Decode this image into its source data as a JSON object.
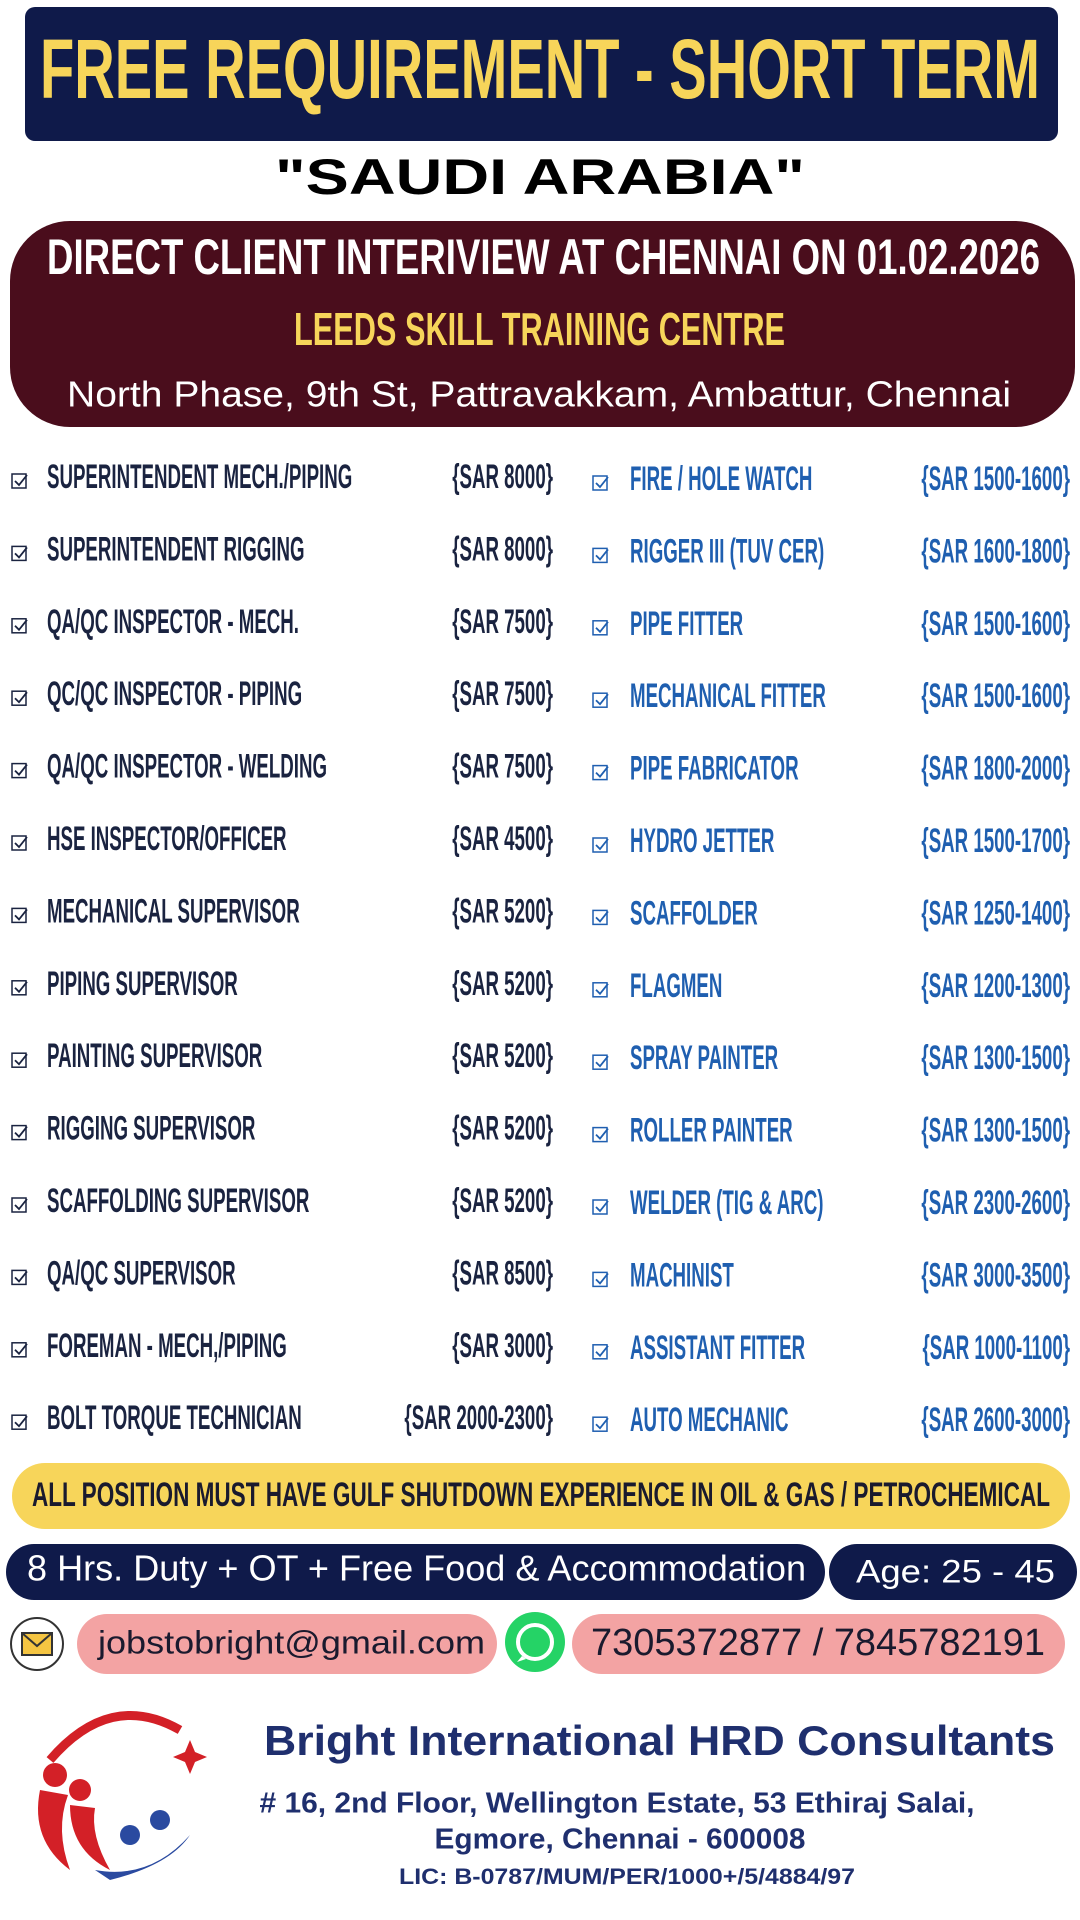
{
  "header": {
    "title": "FREE REQUIREMENT - SHORT TERM",
    "subtitle": "\"SAUDI ARABIA\""
  },
  "banner": {
    "line1": "DIRECT CLIENT INTERIVIEW AT CHENNAI ON 01.02.2026",
    "line2": "LEEDS SKILL TRAINING CENTRE",
    "line3": "North Phase, 9th St, Pattravakkam, Ambattur, Chennai"
  },
  "jobs": {
    "left": [
      {
        "title": "SUPERINTENDENT MECH./PIPING",
        "salary": "{SAR 8000}"
      },
      {
        "title": "SUPERINTENDENT RIGGING",
        "salary": "{SAR 8000}"
      },
      {
        "title": "QA/QC INSPECTOR - MECH.",
        "salary": "{SAR 7500}"
      },
      {
        "title": "QC/QC INSPECTOR - PIPING",
        "salary": "{SAR 7500}"
      },
      {
        "title": "QA/QC INSPECTOR - WELDING",
        "salary": "{SAR 7500}"
      },
      {
        "title": "HSE INSPECTOR/OFFICER",
        "salary": "{SAR 4500}"
      },
      {
        "title": "MECHANICAL SUPERVISOR",
        "salary": "{SAR 5200}"
      },
      {
        "title": "PIPING SUPERVISOR",
        "salary": "{SAR 5200}"
      },
      {
        "title": "PAINTING SUPERVISOR",
        "salary": "{SAR 5200}"
      },
      {
        "title": "RIGGING SUPERVISOR",
        "salary": "{SAR 5200}"
      },
      {
        "title": "SCAFFOLDING SUPERVISOR",
        "salary": "{SAR 5200}"
      },
      {
        "title": "QA/QC SUPERVISOR",
        "salary": "{SAR 8500}"
      },
      {
        "title": "FOREMAN - MECH,/PIPING",
        "salary": "{SAR 3000}"
      },
      {
        "title": "BOLT TORQUE TECHNICIAN",
        "salary": "{SAR 2000-2300}"
      }
    ],
    "right": [
      {
        "title": "FIRE / HOLE WATCH",
        "salary": "{SAR 1500-1600}"
      },
      {
        "title": "RIGGER III (TUV CER)",
        "salary": "{SAR 1600-1800}"
      },
      {
        "title": "PIPE FITTER",
        "salary": "{SAR 1500-1600}"
      },
      {
        "title": "MECHANICAL FITTER",
        "salary": "{SAR 1500-1600}"
      },
      {
        "title": "PIPE FABRICATOR",
        "salary": "{SAR 1800-2000}"
      },
      {
        "title": "HYDRO JETTER",
        "salary": "{SAR 1500-1700}"
      },
      {
        "title": "SCAFFOLDER",
        "salary": "{SAR 1250-1400}"
      },
      {
        "title": "FLAGMEN",
        "salary": "{SAR 1200-1300}"
      },
      {
        "title": "SPRAY PAINTER",
        "salary": "{SAR 1300-1500}"
      },
      {
        "title": "ROLLER PAINTER",
        "salary": "{SAR 1300-1500}"
      },
      {
        "title": "WELDER (TIG & ARC)",
        "salary": "{SAR 2300-2600}"
      },
      {
        "title": "MACHINIST",
        "salary": "{SAR 3000-3500}"
      },
      {
        "title": "ASSISTANT FITTER",
        "salary": "{SAR 1000-1100}"
      },
      {
        "title": "AUTO MECHANIC",
        "salary": "{SAR 2600-3000}"
      }
    ]
  },
  "notice": "ALL POSITION MUST HAVE GULF SHUTDOWN EXPERIENCE IN  OIL & GAS / PETROCHEMICAL",
  "duty": "8 Hrs. Duty + OT + Free Food & Accommodation",
  "age": "Age: 25 - 45",
  "email": "jobstobright@gmail.com",
  "phone": "7305372877 / 7845782191",
  "company": {
    "name": "Bright International HRD Consultants",
    "address1": "# 16, 2nd Floor, Wellington Estate, 53 Ethiraj Salai,",
    "address2": "Egmore, Chennai - 600008",
    "license": "LIC: B-0787/MUM/PER/1000+/5/4884/97"
  }
}
